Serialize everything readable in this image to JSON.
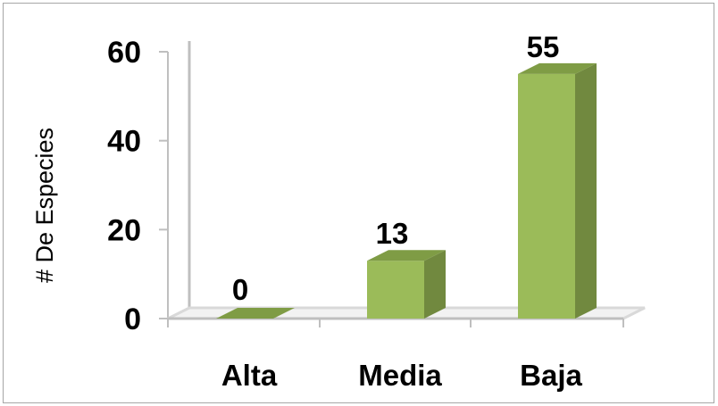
{
  "chart_data": {
    "type": "bar",
    "title": "",
    "xlabel": "",
    "ylabel": "# De Especies",
    "categories": [
      "Alta",
      "Media",
      "Baja"
    ],
    "values": [
      0,
      13,
      55
    ],
    "data_labels": [
      "0",
      "13",
      "55"
    ],
    "yticks": [
      0,
      20,
      40,
      60
    ],
    "ylim": [
      0,
      60
    ],
    "grid": false,
    "legend": "none",
    "style": "3d-column",
    "colors": {
      "bar_front": "#9bbb59",
      "bar_side": "#71893f",
      "bar_top": "#7f9c45",
      "floor": "#d9d9d9",
      "wall_line": "#bfbfbf"
    }
  }
}
